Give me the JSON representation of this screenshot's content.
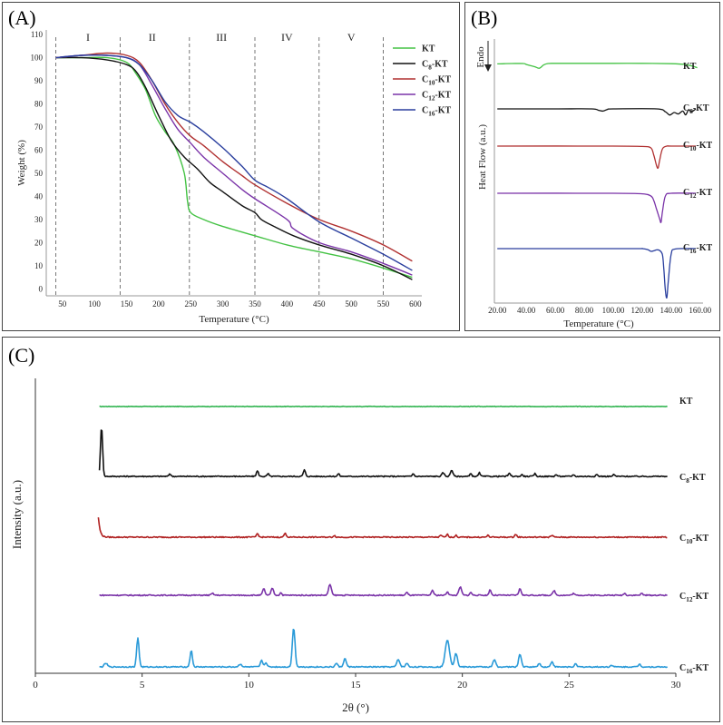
{
  "panels": {
    "a_label": "(A)",
    "b_label": "(B)",
    "c_label": "(C)"
  },
  "chart_data": [
    {
      "type": "line",
      "panel": "A",
      "xlabel": "Temperature (°C)",
      "ylabel": "Weight (%)",
      "xlim": [
        25,
        610
      ],
      "ylim": [
        -3,
        112
      ],
      "xticks": [
        50,
        100,
        150,
        200,
        250,
        300,
        350,
        400,
        450,
        500,
        550,
        600
      ],
      "yticks": [
        0,
        10,
        20,
        30,
        40,
        50,
        60,
        70,
        80,
        90,
        100,
        110
      ],
      "stage_boundaries": [
        40,
        140,
        248,
        350,
        450,
        550
      ],
      "stages": [
        {
          "label": "I",
          "x": 90
        },
        {
          "label": "II",
          "x": 190
        },
        {
          "label": "III",
          "x": 298
        },
        {
          "label": "IV",
          "x": 400
        },
        {
          "label": "V",
          "x": 500
        }
      ],
      "legend_position": "top-right",
      "series": [
        {
          "name": "KT",
          "color": "#44c244",
          "x": [
            40,
            80,
            120,
            150,
            165,
            180,
            195,
            210,
            225,
            240,
            245,
            250,
            270,
            300,
            350,
            400,
            450,
            500,
            550,
            595
          ],
          "y": [
            100,
            100,
            100,
            98,
            93,
            86,
            75,
            68,
            62,
            50,
            38,
            33,
            30,
            27,
            23,
            19,
            16,
            13,
            9,
            5
          ]
        },
        {
          "name": "C8-KT",
          "color": "#111111",
          "x": [
            40,
            80,
            120,
            150,
            165,
            180,
            200,
            220,
            240,
            260,
            280,
            300,
            330,
            350,
            360,
            380,
            410,
            450,
            500,
            550,
            595
          ],
          "y": [
            100,
            100,
            99,
            97,
            94,
            87,
            75,
            64,
            57,
            52,
            46,
            42,
            36,
            33,
            30,
            27,
            23,
            19,
            15,
            10,
            4
          ]
        },
        {
          "name": "C10-KT",
          "color": "#b03030",
          "x": [
            40,
            80,
            120,
            150,
            170,
            190,
            210,
            230,
            250,
            270,
            300,
            330,
            350,
            400,
            450,
            500,
            550,
            595
          ],
          "y": [
            100,
            101,
            102,
            101,
            98,
            90,
            80,
            72,
            66,
            62,
            55,
            49,
            45,
            37,
            30,
            25,
            19,
            12
          ]
        },
        {
          "name": "C12-KT",
          "color": "#7a33a8",
          "x": [
            40,
            80,
            120,
            150,
            170,
            190,
            210,
            230,
            250,
            270,
            300,
            330,
            350,
            400,
            410,
            450,
            500,
            550,
            595
          ],
          "y": [
            100,
            101,
            101,
            100,
            97,
            88,
            78,
            69,
            63,
            57,
            50,
            43,
            39,
            30,
            26,
            20,
            16,
            11,
            6
          ]
        },
        {
          "name": "C16-KT",
          "color": "#2a3f9e",
          "x": [
            40,
            80,
            120,
            150,
            170,
            190,
            210,
            230,
            250,
            270,
            300,
            330,
            350,
            370,
            400,
            450,
            500,
            550,
            595
          ],
          "y": [
            100,
            101,
            101,
            100,
            97,
            90,
            81,
            75,
            72,
            68,
            61,
            53,
            47,
            44,
            39,
            29,
            22,
            15,
            8
          ]
        }
      ]
    },
    {
      "type": "line",
      "panel": "B",
      "xlabel": "Temperature (°C)",
      "ylabel": "Heat Flow (a.u.)",
      "endo_label": "Endo",
      "xlim": [
        18,
        162
      ],
      "xticks": [
        20,
        40,
        60,
        80,
        100,
        120,
        140,
        160
      ],
      "xtick_labels": [
        "20.00",
        "40.00",
        "60.00",
        "80.00",
        "100.00",
        "120.00",
        "140.00",
        "160.00"
      ],
      "series": [
        {
          "name": "KT",
          "color": "#44c244",
          "x": [
            20,
            25,
            30,
            38,
            40,
            43,
            46,
            49,
            52,
            55,
            60,
            80,
            100,
            120,
            140,
            150,
            155,
            158
          ],
          "y": [
            0.2,
            0.1,
            0.0,
            0.0,
            0.5,
            1.2,
            1.8,
            2.6,
            0.8,
            0.0,
            -0.1,
            -0.1,
            -0.1,
            -0.1,
            0.1,
            0.6,
            1.5,
            2.3
          ]
        },
        {
          "name": "C8-KT",
          "color": "#111111",
          "x": [
            20,
            60,
            85,
            90,
            93,
            96,
            100,
            130,
            136,
            139,
            142,
            145,
            148,
            150,
            152,
            154,
            157
          ],
          "y": [
            0,
            0,
            0,
            0.8,
            1.2,
            0.3,
            0,
            0,
            1.6,
            3.4,
            2.0,
            2.8,
            1.2,
            3.3,
            0.5,
            1.6,
            0
          ]
        },
        {
          "name": "C10-KT",
          "color": "#b03030",
          "x": [
            20,
            100,
            120,
            126,
            128,
            130,
            131,
            132,
            134,
            137,
            140,
            157
          ],
          "y": [
            0,
            0,
            0.2,
            1.0,
            5.0,
            11.0,
            12.0,
            8.0,
            1.5,
            0,
            0,
            0
          ]
        },
        {
          "name": "C12-KT",
          "color": "#7a33a8",
          "x": [
            20,
            100,
            120,
            126,
            128,
            130,
            132,
            133,
            134,
            136,
            140,
            157
          ],
          "y": [
            0,
            0,
            0.3,
            1.5,
            4.0,
            9.0,
            14.0,
            16.0,
            10.0,
            1.5,
            0,
            0
          ]
        },
        {
          "name": "C16-KT",
          "color": "#2a3f9e",
          "x": [
            20,
            110,
            120,
            124,
            126,
            128,
            130,
            132,
            134,
            135,
            136,
            137,
            138,
            140,
            143,
            157
          ],
          "y": [
            0,
            0,
            0,
            0.6,
            1.5,
            1.2,
            0.7,
            1.0,
            3.5,
            12.0,
            23.0,
            27.0,
            18.0,
            3.0,
            0.2,
            0
          ]
        }
      ]
    },
    {
      "type": "line",
      "panel": "C",
      "xlabel": "2θ (°)",
      "ylabel": "Intensity (a.u.)",
      "xlim": [
        0,
        30
      ],
      "xticks": [
        0,
        5,
        10,
        15,
        20,
        25,
        30
      ],
      "series": [
        {
          "name": "KT",
          "label": "KT",
          "color": "#33b552",
          "peaks": [],
          "noise": 0.6,
          "start": 3
        },
        {
          "name": "C8-KT",
          "label": "C8-KT",
          "color": "#111111",
          "start": 3,
          "peaks": [
            [
              3.1,
              55,
              0.07
            ],
            [
              6.3,
              3,
              0.06
            ],
            [
              10.4,
              6,
              0.07
            ],
            [
              10.9,
              3,
              0.06
            ],
            [
              12.6,
              7,
              0.07
            ],
            [
              14.2,
              3,
              0.06
            ],
            [
              17.7,
              3,
              0.06
            ],
            [
              19.1,
              4,
              0.08
            ],
            [
              19.5,
              7,
              0.08
            ],
            [
              20.4,
              3,
              0.06
            ],
            [
              20.8,
              4,
              0.06
            ],
            [
              22.2,
              3,
              0.08
            ],
            [
              22.8,
              2,
              0.06
            ],
            [
              23.4,
              3,
              0.06
            ],
            [
              24.4,
              2,
              0.06
            ],
            [
              25.2,
              2,
              0.06
            ],
            [
              26.3,
              2,
              0.06
            ],
            [
              27.1,
              2,
              0.06
            ]
          ]
        },
        {
          "name": "C10-KT",
          "label": "C10-KT",
          "color": "#b02020",
          "start": 2.95,
          "decay": 22,
          "peaks": [
            [
              10.4,
              4,
              0.07
            ],
            [
              11.7,
              4,
              0.08
            ],
            [
              14.0,
              2,
              0.06
            ],
            [
              19.0,
              2,
              0.07
            ],
            [
              19.3,
              3,
              0.07
            ],
            [
              19.7,
              2,
              0.06
            ],
            [
              21.2,
              2,
              0.06
            ],
            [
              22.5,
              3,
              0.07
            ],
            [
              24.2,
              2,
              0.07
            ]
          ]
        },
        {
          "name": "C12-KT",
          "label": "C12-KT",
          "color": "#7a33a8",
          "start": 3,
          "peaks": [
            [
              8.3,
              2,
              0.08
            ],
            [
              10.7,
              7,
              0.08
            ],
            [
              11.1,
              8,
              0.08
            ],
            [
              11.5,
              3,
              0.06
            ],
            [
              13.8,
              12,
              0.09
            ],
            [
              17.4,
              3,
              0.07
            ],
            [
              18.6,
              5,
              0.08
            ],
            [
              19.3,
              4,
              0.07
            ],
            [
              19.9,
              9,
              0.09
            ],
            [
              20.4,
              3,
              0.07
            ],
            [
              21.3,
              6,
              0.07
            ],
            [
              22.7,
              7,
              0.08
            ],
            [
              24.3,
              5,
              0.08
            ],
            [
              25.2,
              2,
              0.07
            ],
            [
              27.6,
              2,
              0.07
            ],
            [
              28.4,
              2,
              0.07
            ]
          ]
        },
        {
          "name": "C16-KT",
          "label": "C16-KT",
          "color": "#2a9ad8",
          "start": 3,
          "peaks": [
            [
              3.3,
              4,
              0.1
            ],
            [
              4.8,
              32,
              0.08
            ],
            [
              7.3,
              18,
              0.08
            ],
            [
              9.6,
              3,
              0.1
            ],
            [
              10.6,
              7,
              0.08
            ],
            [
              10.8,
              5,
              0.07
            ],
            [
              12.1,
              43,
              0.09
            ],
            [
              14.5,
              9,
              0.09
            ],
            [
              14.1,
              4,
              0.08
            ],
            [
              17.0,
              8,
              0.1
            ],
            [
              17.4,
              4,
              0.08
            ],
            [
              19.3,
              30,
              0.14
            ],
            [
              19.7,
              15,
              0.1
            ],
            [
              21.5,
              8,
              0.09
            ],
            [
              22.7,
              14,
              0.09
            ],
            [
              23.6,
              4,
              0.08
            ],
            [
              24.2,
              6,
              0.08
            ],
            [
              25.3,
              3,
              0.08
            ],
            [
              27.0,
              2,
              0.08
            ],
            [
              28.3,
              3,
              0.08
            ]
          ]
        }
      ]
    }
  ]
}
